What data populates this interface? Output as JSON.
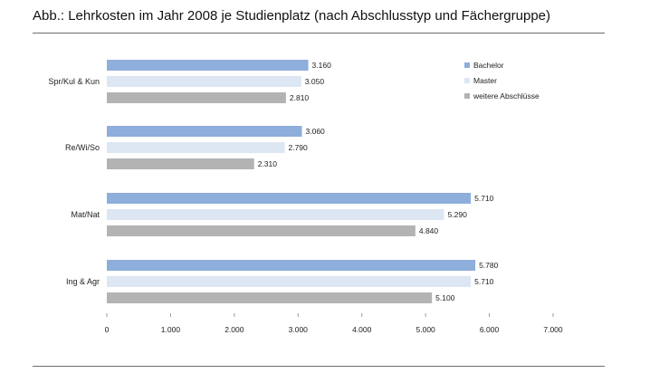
{
  "page": {
    "title": "Abb.: Lehrkosten im Jahr 2008 je Studienplatz (nach Abschlusstyp und Fächergruppe)"
  },
  "chart_data": {
    "type": "bar",
    "orientation": "horizontal",
    "title": "Abb.: Lehrkosten im Jahr 2008 je Studienplatz (nach Abschlusstyp und Fächergruppe)",
    "categories": [
      "Spr/Kul & Kun",
      "Re/Wi/So",
      "Mat/Nat",
      "Ing & Agr"
    ],
    "series": [
      {
        "name": "Bachelor",
        "color": "#8eaedb",
        "values": [
          3160,
          3060,
          5710,
          5780
        ],
        "labels": [
          "3.160",
          "3.060",
          "5.710",
          "5.780"
        ]
      },
      {
        "name": "Master",
        "color": "#dde6f3",
        "values": [
          3050,
          2790,
          5290,
          5710
        ],
        "labels": [
          "3.050",
          "2.790",
          "5.290",
          "5.710"
        ]
      },
      {
        "name": "weitere Abschlüsse",
        "color": "#b3b3b3",
        "values": [
          2810,
          2310,
          4840,
          5100
        ],
        "labels": [
          "2.810",
          "2.310",
          "4.840",
          "5.100"
        ]
      }
    ],
    "xlim": [
      0,
      7000
    ],
    "xticks": [
      0,
      1000,
      2000,
      3000,
      4000,
      5000,
      6000,
      7000
    ],
    "xtick_labels": [
      "0",
      "1.000",
      "2.000",
      "3.000",
      "4.000",
      "5.000",
      "6.000",
      "7.000"
    ],
    "xlabel": "",
    "ylabel": "",
    "grid": false,
    "legend_position": "top-right"
  }
}
